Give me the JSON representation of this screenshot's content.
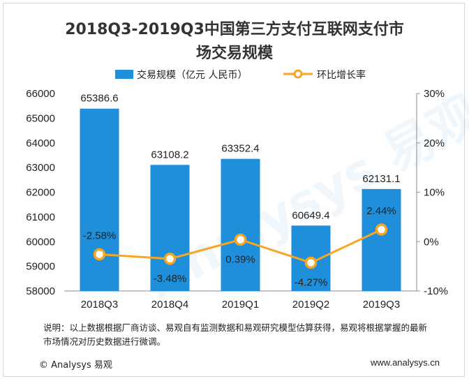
{
  "title_line1": "2018Q3-2019Q3中国第三方支付互联网支付市",
  "title_line2": "场交易规模",
  "legend": {
    "bar_label": "交易规模（亿元 人民币）",
    "line_label": "环比增长率"
  },
  "note": "说明：以上数据根据厂商访谈、易观自有监测数据和易观研究模型估算获得，易观将根据掌握的最新市场情况对历史数据进行微调。",
  "footer": {
    "left": "© Analysys 易观",
    "right": "www.analysys.cn"
  },
  "watermark": "Analysys 易观",
  "colors": {
    "bar": "#1f8fdb",
    "line": "#f5a623",
    "axis": "#888888",
    "grid_tick": "#999999"
  },
  "chart_data": {
    "type": "bar",
    "categories": [
      "2018Q3",
      "2018Q4",
      "2019Q1",
      "2019Q2",
      "2019Q3"
    ],
    "series": [
      {
        "name": "交易规模（亿元 人民币）",
        "type": "bar",
        "axis": "left",
        "values": [
          65386.6,
          63108.2,
          63352.4,
          60649.4,
          62131.1
        ],
        "labels": [
          "65386.6",
          "63108.2",
          "63352.4",
          "60649.4",
          "62131.1"
        ]
      },
      {
        "name": "环比增长率",
        "type": "line",
        "axis": "right",
        "values": [
          -2.58,
          -3.48,
          0.39,
          -4.27,
          2.44
        ],
        "labels": [
          "-2.58%",
          "-3.48%",
          "0.39%",
          "-4.27%",
          "2.44%"
        ]
      }
    ],
    "y_left": {
      "min": 58000,
      "max": 66000,
      "ticks": [
        "58000",
        "59000",
        "60000",
        "61000",
        "62000",
        "63000",
        "64000",
        "65000",
        "66000"
      ]
    },
    "y_right": {
      "min": -10,
      "max": 30,
      "ticks": [
        "-10%",
        "0%",
        "10%",
        "20%",
        "30%"
      ]
    }
  }
}
